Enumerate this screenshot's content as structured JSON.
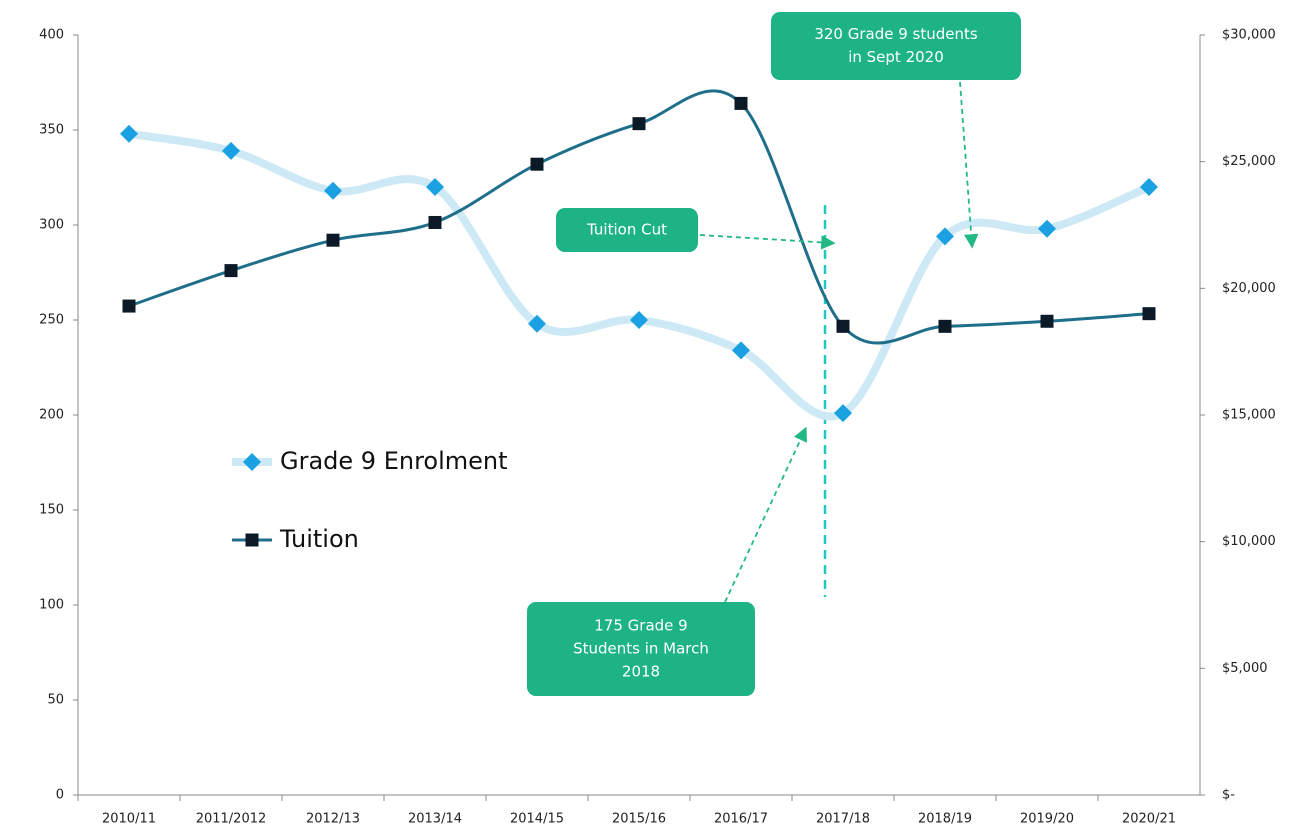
{
  "chart_data": {
    "type": "line",
    "categories": [
      "2010/11",
      "2011/2012",
      "2012/13",
      "2013/14",
      "2014/15",
      "2015/16",
      "2016/17",
      "2017/18",
      "2018/19",
      "2019/20",
      "2020/21"
    ],
    "series": [
      {
        "name": "Grade 9 Enrolment",
        "color": "#1ba1e2",
        "line_color": "#cde9f5",
        "marker": "diamond",
        "values": [
          348,
          339,
          318,
          320,
          248,
          250,
          234,
          201,
          294,
          298,
          320
        ]
      },
      {
        "name": "Tuition",
        "color": "#0b1a26",
        "line_color": "#1f6f8b",
        "marker": "square",
        "axis": "y2",
        "values": [
          19300,
          20700,
          21900,
          22600,
          24900,
          26500,
          27300,
          18500,
          18500,
          18700,
          19000
        ]
      }
    ],
    "ylim": [
      0,
      400
    ],
    "yticks": [
      0,
      50,
      100,
      150,
      200,
      250,
      300,
      350,
      400
    ],
    "y2lim": [
      0,
      30000
    ],
    "y2ticks": [
      {
        "value": 0,
        "label": "$-"
      },
      {
        "value": 5000,
        "label": "$5,000"
      },
      {
        "value": 10000,
        "label": "$10,000"
      },
      {
        "value": 15000,
        "label": "$15,000"
      },
      {
        "value": 20000,
        "label": "$20,000"
      },
      {
        "value": 25000,
        "label": "$25,000"
      },
      {
        "value": 30000,
        "label": "$30,000"
      }
    ],
    "grid": false,
    "legend": "left",
    "annotations": [
      {
        "lines": [
          "320 Grade 9 students",
          "in Sept 2020"
        ]
      },
      {
        "lines": [
          "Tuition Cut"
        ]
      },
      {
        "lines": [
          "175 Grade 9",
          "Students in March",
          "2018"
        ]
      }
    ]
  }
}
